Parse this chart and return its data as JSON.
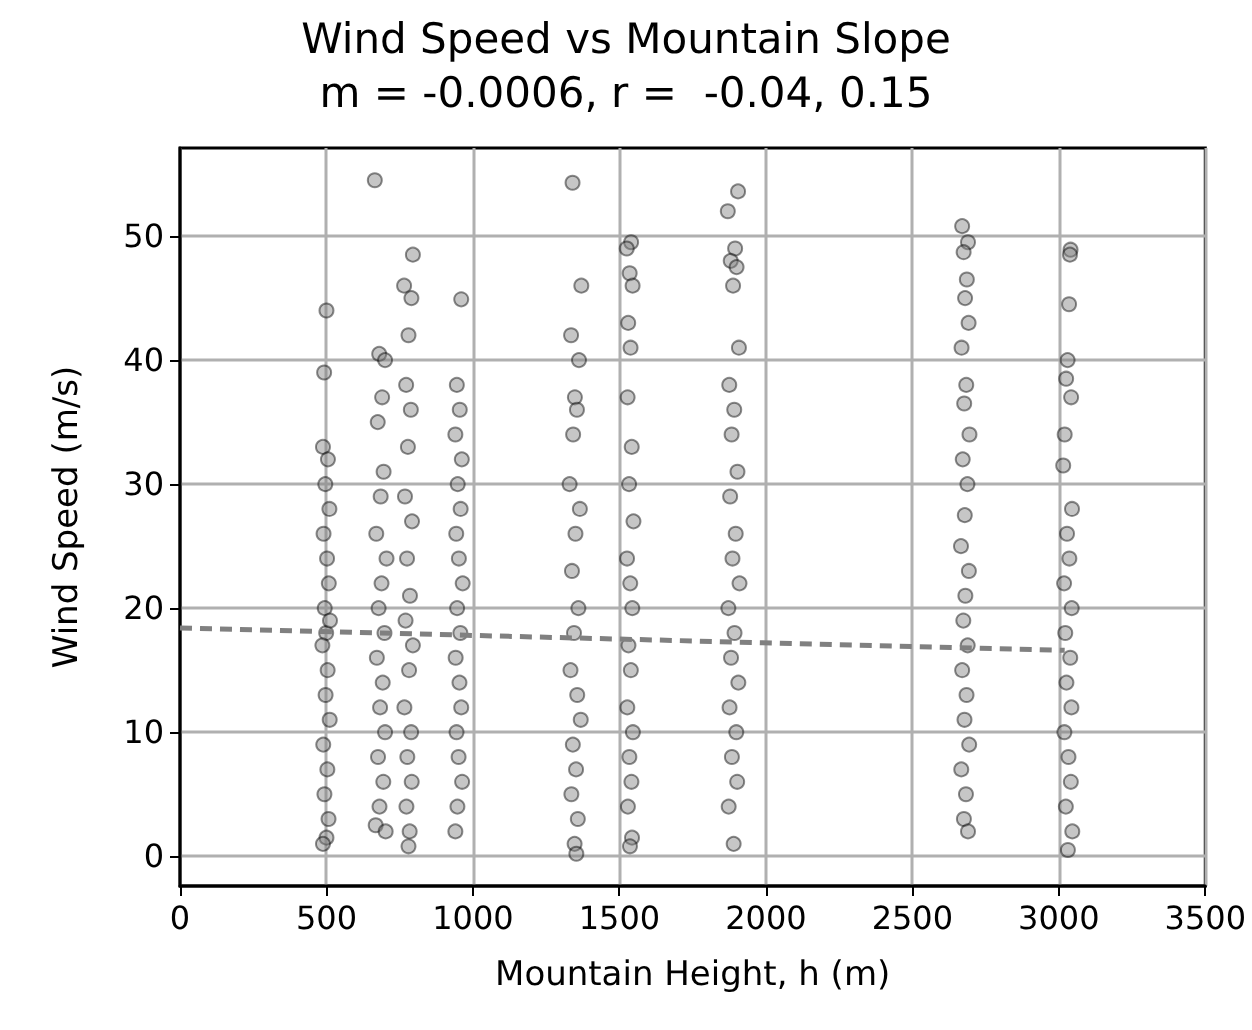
{
  "chart_data": {
    "type": "scatter",
    "title": "Wind Speed vs Mountain Slope",
    "subtitle": "m = -0.0006, r =  -0.04, 0.15",
    "xlabel": "Mountain Height, h (m)",
    "ylabel": "Wind Speed (m/s)",
    "xlim": [
      0,
      3500
    ],
    "xticks": [
      0,
      500,
      1000,
      1500,
      2000,
      2500,
      3000,
      3500
    ],
    "ylim": [
      -2.4,
      57.1
    ],
    "yticks": [
      0,
      10,
      20,
      30,
      40,
      50
    ],
    "grid": true,
    "marker": "circle",
    "series": [
      {
        "color": "#808080",
        "x": [
          500,
          492,
          488,
          505,
          496,
          510,
          490,
          502,
          508,
          494,
          499,
          486,
          504,
          497,
          511,
          489,
          503,
          493,
          507,
          500,
          488,
          512,
          665,
          680,
          700,
          690,
          675,
          695,
          685,
          670,
          705,
          688,
          678,
          698,
          672,
          692,
          683,
          700,
          676,
          694,
          681,
          668,
          702,
          795,
          765,
          790,
          780,
          772,
          788,
          778,
          768,
          792,
          775,
          785,
          770,
          795,
          782,
          766,
          789,
          776,
          791,
          773,
          784,
          780,
          960,
          945,
          955,
          940,
          962,
          948,
          958,
          943,
          952,
          965,
          946,
          957,
          941,
          954,
          960,
          944,
          951,
          963,
          947,
          940,
          1340,
          1370,
          1335,
          1362,
          1348,
          1355,
          1342,
          1330,
          1365,
          1350,
          1338,
          1360,
          1345,
          1333,
          1356,
          1368,
          1341,
          1352,
          1336,
          1358,
          1347,
          1353,
          1540,
          1525,
          1535,
          1545,
          1530,
          1538,
          1528,
          1542,
          1533,
          1548,
          1526,
          1537,
          1544,
          1531,
          1539,
          1527,
          1546,
          1534,
          1541,
          1529,
          1543,
          1536,
          1905,
          1870,
          1895,
          1880,
          1900,
          1888,
          1908,
          1875,
          1892,
          1883,
          1903,
          1878,
          1897,
          1886,
          1910,
          1872,
          1893,
          1881,
          1906,
          1876,
          1899,
          1884,
          1902,
          1873,
          1890,
          2670,
          2690,
          2675,
          2686,
          2680,
          2692,
          2668,
          2684,
          2677,
          2695,
          2672,
          2688,
          2679,
          2666,
          2693,
          2681,
          2674,
          2689,
          2670,
          2685,
          2678,
          2694,
          2667,
          2683,
          2676,
          2690,
          3040,
          3038,
          3035,
          3030,
          3025,
          3042,
          3020,
          3015,
          3045,
          3028,
          3036,
          3018,
          3044,
          3022,
          3039,
          3026,
          3043,
          3019,
          3033,
          3041,
          3024,
          3046,
          3031
        ],
        "values": [
          44,
          39,
          33,
          32,
          30,
          28,
          26,
          24,
          22,
          20,
          18,
          17,
          15,
          13,
          11,
          9,
          7,
          5,
          3,
          1.5,
          1,
          19,
          54.5,
          40.5,
          40,
          37,
          35,
          31,
          29,
          26,
          24,
          22,
          20,
          18,
          16,
          14,
          12,
          10,
          8,
          6,
          4,
          2.5,
          2,
          48.5,
          46,
          45,
          42,
          38,
          36,
          33,
          29,
          27,
          24,
          21,
          19,
          17,
          15,
          12,
          10,
          8,
          6,
          4,
          2,
          0.8,
          44.9,
          38,
          36,
          34,
          32,
          30,
          28,
          26,
          24,
          22,
          20,
          18,
          16,
          14,
          12,
          10,
          8,
          6,
          4,
          2,
          54.3,
          46,
          42,
          40,
          37,
          36,
          34,
          30,
          28,
          26,
          23,
          20,
          18,
          15,
          13,
          11,
          9,
          7,
          5,
          3,
          1,
          0.2,
          49.5,
          49,
          47,
          46,
          43,
          41,
          37,
          33,
          30,
          27,
          24,
          22,
          20,
          17,
          15,
          12,
          10,
          8,
          6,
          4,
          1.5,
          0.8,
          53.6,
          52,
          49,
          48,
          47.5,
          46,
          41,
          38,
          36,
          34,
          31,
          29,
          26,
          24,
          22,
          20,
          18,
          16,
          14,
          12,
          10,
          8,
          6,
          4,
          1,
          50.8,
          49.5,
          48.7,
          46.5,
          45,
          43,
          41,
          38,
          36.5,
          34,
          32,
          30,
          27.5,
          25,
          23,
          21,
          19,
          17,
          15,
          13,
          11,
          9,
          7,
          5,
          3,
          2,
          48.9,
          48.5,
          44.5,
          40,
          38.5,
          37,
          34,
          31.5,
          28,
          26,
          24,
          22,
          20,
          18,
          16,
          14,
          12,
          10,
          8,
          6,
          4,
          2,
          0.5
        ]
      },
      {
        "type": "line",
        "color": "#808080",
        "line_style": "dashed",
        "marker": "none",
        "x": [
          0,
          3020
        ],
        "values": [
          18.4,
          16.6
        ]
      }
    ]
  }
}
